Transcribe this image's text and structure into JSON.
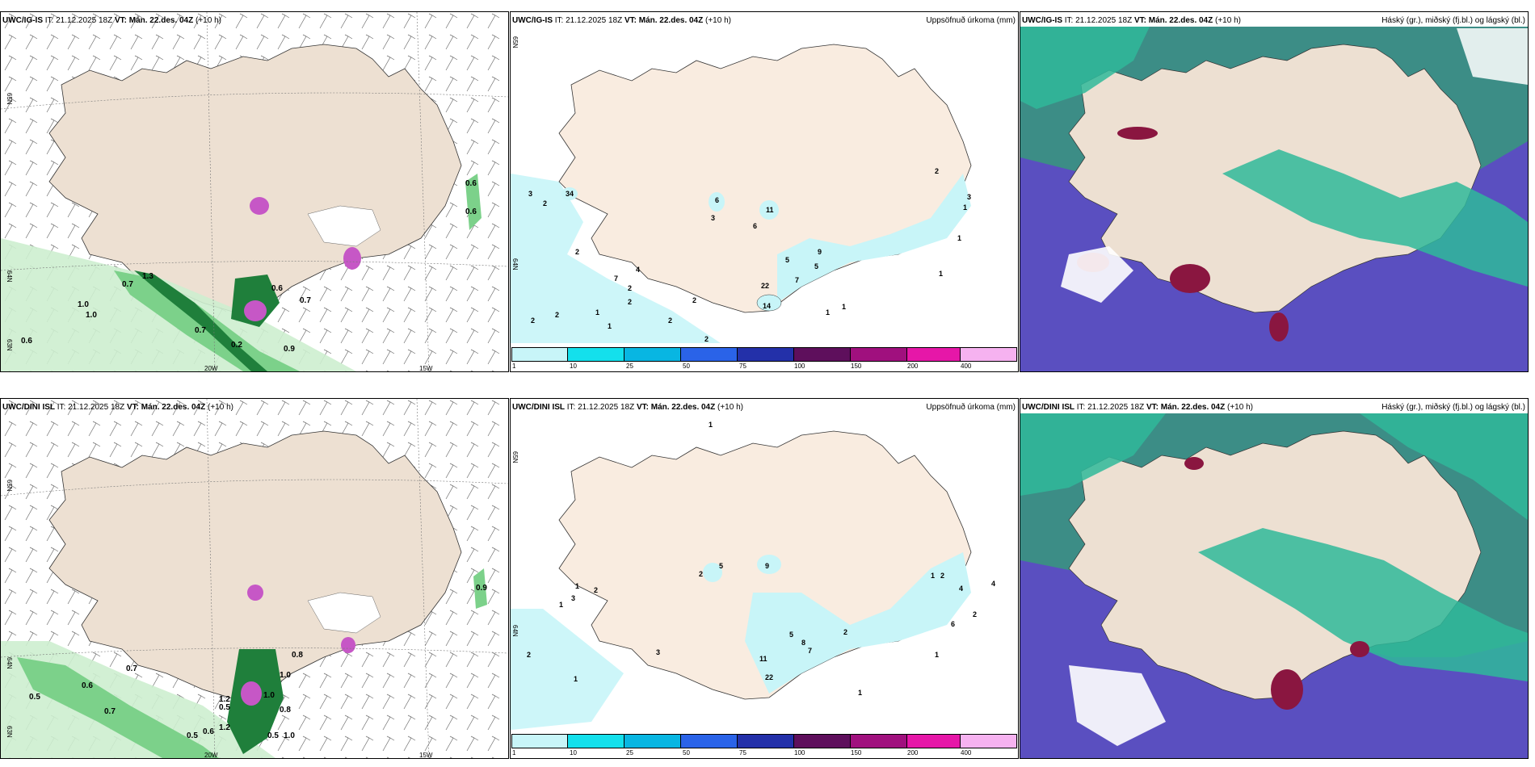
{
  "panels": [
    {
      "model": "UWC/IG-IS",
      "it_label": "IT:",
      "it_value": "21.12.2025 18Z",
      "vt_label": "VT:",
      "vt_value": "Mán. 22.des. 04Z",
      "lead": "(+10 h)",
      "right_title": "",
      "field": "wind-precip",
      "lat_labels": [
        "65N",
        "64N",
        "63N"
      ],
      "lon_labels": [
        "20W",
        "15W"
      ],
      "values": [
        "0.6",
        "0.6",
        "0.7",
        "1.3",
        "1.0",
        "1.0",
        "0.7",
        "0.2",
        "0.6",
        "0.7",
        "0.9",
        "0.6"
      ]
    },
    {
      "model": "UWC/IG-IS",
      "it_label": "IT:",
      "it_value": "21.12.2025 18Z",
      "vt_label": "VT:",
      "vt_value": "Mán. 22.des. 04Z",
      "lead": "(+10 h)",
      "right_title": "Uppsöfnuð úrkoma (mm)",
      "field": "accum-precip",
      "lat_labels": [
        "65N",
        "64N"
      ],
      "lon_labels": [],
      "values": [
        "3",
        "2",
        "34",
        "2",
        "7",
        "4",
        "2",
        "2",
        "1",
        "1",
        "2",
        "2",
        "2",
        "6",
        "11",
        "6",
        "3",
        "5",
        "7",
        "9",
        "5",
        "22",
        "14",
        "1",
        "1",
        "2",
        "2",
        "2",
        "1",
        "3",
        "1",
        "1"
      ]
    },
    {
      "model": "UWC/IG-IS",
      "it_label": "IT:",
      "it_value": "21.12.2025 18Z",
      "vt_label": "VT:",
      "vt_value": "Mán. 22.des. 04Z",
      "lead": "(+10 h)",
      "right_title": "Háský (gr.), miðský (fj.bl.) og lágský (bl.)",
      "field": "clouds",
      "lat_labels": [],
      "lon_labels": [],
      "values": []
    },
    {
      "model": "UWC/DINI ISL",
      "it_label": "IT:",
      "it_value": "21.12.2025 18Z",
      "vt_label": "VT:",
      "vt_value": "Mán. 22.des. 04Z",
      "lead": "(+10 h)",
      "right_title": "",
      "field": "wind-precip",
      "lat_labels": [
        "65N",
        "64N",
        "63N"
      ],
      "lon_labels": [
        "20W",
        "15W"
      ],
      "values": [
        "0.9",
        "0.7",
        "0.6",
        "0.5",
        "0.7",
        "1.2",
        "0.5",
        "1.0",
        "0.8",
        "1.0",
        "0.8",
        "0.5",
        "0.6",
        "1.2",
        "0.5",
        "1.0"
      ]
    },
    {
      "model": "UWC/DINI ISL",
      "it_label": "IT:",
      "it_value": "21.12.2025 18Z",
      "vt_label": "VT:",
      "vt_value": "Mán. 22.des. 04Z",
      "lead": "(+10 h)",
      "right_title": "Uppsöfnuð úrkoma (mm)",
      "field": "accum-precip",
      "lat_labels": [
        "65N",
        "64N"
      ],
      "lon_labels": [],
      "values": [
        "1",
        "2",
        "5",
        "9",
        "1",
        "2",
        "3",
        "5",
        "8",
        "7",
        "11",
        "22",
        "2",
        "1",
        "1",
        "2",
        "4",
        "6",
        "2",
        "1",
        "3",
        "1",
        "2",
        "4",
        "1"
      ]
    },
    {
      "model": "UWC/DINI ISL",
      "it_label": "IT:",
      "it_value": "21.12.2025 18Z",
      "vt_label": "VT:",
      "vt_value": "Mán. 22.des. 04Z",
      "lead": "(+10 h)",
      "right_title": "Háský (gr.), miðský (fj.bl.) og lágský (bl.)",
      "field": "clouds",
      "lat_labels": [],
      "lon_labels": [],
      "values": []
    }
  ],
  "colorbar": {
    "labels": [
      "1",
      "10",
      "25",
      "50",
      "75",
      "100",
      "150",
      "200",
      "400"
    ],
    "colors": [
      "#c8f5f8",
      "#14e0ec",
      "#08b6e2",
      "#2a63e8",
      "#2330a9",
      "#5e0f5c",
      "#a0107e",
      "#e617a8",
      "#f6b2f0"
    ]
  },
  "colors": {
    "land": "#ede0d2",
    "land_pale": "#f9ece0",
    "precip_light": "#cdeecf",
    "precip_med": "#7cd18a",
    "precip_dark": "#1f7f3b",
    "precip_deep": "#0d3a1c",
    "snow_magenta": "#c657c6",
    "cloud_high": "#2fb89a",
    "cloud_mid": "#5a4fc0",
    "cloud_low": "#8a1640",
    "sea_cloud_teal": "#3c8d86"
  }
}
